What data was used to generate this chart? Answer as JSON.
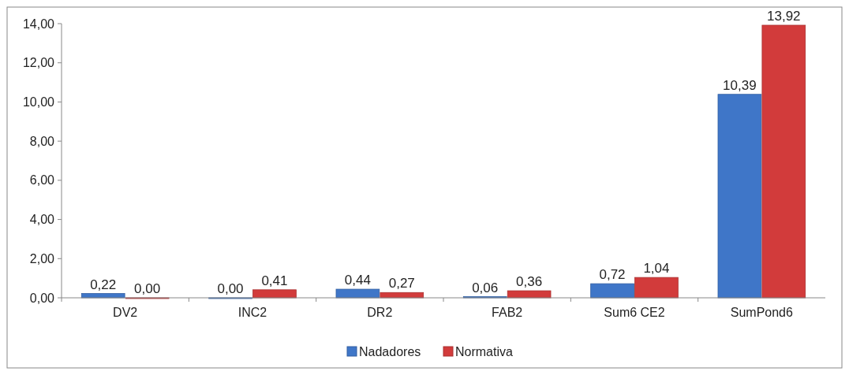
{
  "chart_data": {
    "type": "bar",
    "categories": [
      "DV2",
      "INC2",
      "DR2",
      "FAB2",
      "Sum6 CE2",
      "SumPond6"
    ],
    "series": [
      {
        "name": "Nadadores",
        "color": "#3f76c8",
        "values": [
          0.22,
          0.0,
          0.44,
          0.06,
          0.72,
          10.39
        ],
        "value_labels": [
          "0,22",
          "0,00",
          "0,44",
          "0,06",
          "0,72",
          "10,39"
        ]
      },
      {
        "name": "Normativa",
        "color": "#d23b3b",
        "values": [
          0.0,
          0.41,
          0.27,
          0.36,
          1.04,
          13.92
        ],
        "value_labels": [
          "0,00",
          "0,41",
          "0,27",
          "0,36",
          "1,04",
          "13,92"
        ]
      }
    ],
    "ylim": [
      0,
      14
    ],
    "yticks": [
      {
        "value": 0,
        "label": "0,00"
      },
      {
        "value": 2,
        "label": "2,00"
      },
      {
        "value": 4,
        "label": "4,00"
      },
      {
        "value": 6,
        "label": "6,00"
      },
      {
        "value": 8,
        "label": "8,00"
      },
      {
        "value": 10,
        "label": "10,00"
      },
      {
        "value": 12,
        "label": "12,00"
      },
      {
        "value": 14,
        "label": "14,00"
      }
    ],
    "grid": false,
    "legend": "bottom"
  }
}
